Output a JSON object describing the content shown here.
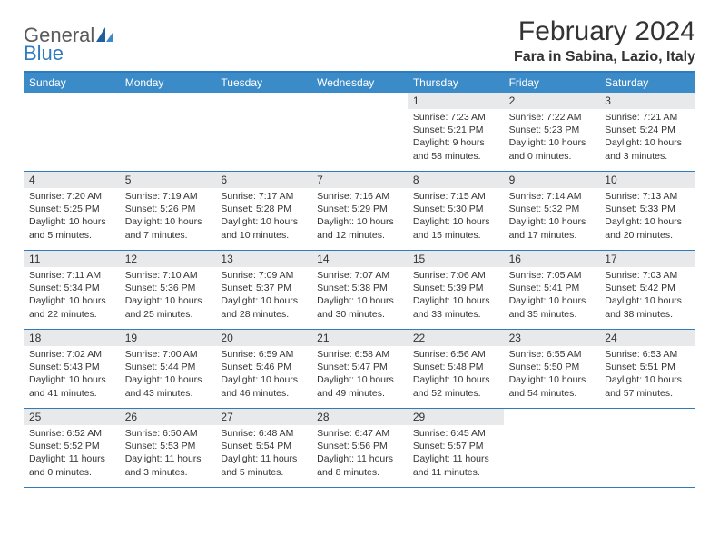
{
  "brand": {
    "general": "General",
    "blue": "Blue"
  },
  "title": "February 2024",
  "location": "Fara in Sabina, Lazio, Italy",
  "colors": {
    "header_bg": "#3c8bc9",
    "border": "#2f7bbf",
    "daynum_bg": "#e8e9ea",
    "text": "#333333",
    "logo_gray": "#5a5a5a",
    "logo_blue": "#2f7bbf"
  },
  "day_headers": [
    "Sunday",
    "Monday",
    "Tuesday",
    "Wednesday",
    "Thursday",
    "Friday",
    "Saturday"
  ],
  "weeks": [
    [
      {
        "num": "",
        "sunrise": "",
        "sunset": "",
        "daylight": ""
      },
      {
        "num": "",
        "sunrise": "",
        "sunset": "",
        "daylight": ""
      },
      {
        "num": "",
        "sunrise": "",
        "sunset": "",
        "daylight": ""
      },
      {
        "num": "",
        "sunrise": "",
        "sunset": "",
        "daylight": ""
      },
      {
        "num": "1",
        "sunrise": "Sunrise: 7:23 AM",
        "sunset": "Sunset: 5:21 PM",
        "daylight": "Daylight: 9 hours and 58 minutes."
      },
      {
        "num": "2",
        "sunrise": "Sunrise: 7:22 AM",
        "sunset": "Sunset: 5:23 PM",
        "daylight": "Daylight: 10 hours and 0 minutes."
      },
      {
        "num": "3",
        "sunrise": "Sunrise: 7:21 AM",
        "sunset": "Sunset: 5:24 PM",
        "daylight": "Daylight: 10 hours and 3 minutes."
      }
    ],
    [
      {
        "num": "4",
        "sunrise": "Sunrise: 7:20 AM",
        "sunset": "Sunset: 5:25 PM",
        "daylight": "Daylight: 10 hours and 5 minutes."
      },
      {
        "num": "5",
        "sunrise": "Sunrise: 7:19 AM",
        "sunset": "Sunset: 5:26 PM",
        "daylight": "Daylight: 10 hours and 7 minutes."
      },
      {
        "num": "6",
        "sunrise": "Sunrise: 7:17 AM",
        "sunset": "Sunset: 5:28 PM",
        "daylight": "Daylight: 10 hours and 10 minutes."
      },
      {
        "num": "7",
        "sunrise": "Sunrise: 7:16 AM",
        "sunset": "Sunset: 5:29 PM",
        "daylight": "Daylight: 10 hours and 12 minutes."
      },
      {
        "num": "8",
        "sunrise": "Sunrise: 7:15 AM",
        "sunset": "Sunset: 5:30 PM",
        "daylight": "Daylight: 10 hours and 15 minutes."
      },
      {
        "num": "9",
        "sunrise": "Sunrise: 7:14 AM",
        "sunset": "Sunset: 5:32 PM",
        "daylight": "Daylight: 10 hours and 17 minutes."
      },
      {
        "num": "10",
        "sunrise": "Sunrise: 7:13 AM",
        "sunset": "Sunset: 5:33 PM",
        "daylight": "Daylight: 10 hours and 20 minutes."
      }
    ],
    [
      {
        "num": "11",
        "sunrise": "Sunrise: 7:11 AM",
        "sunset": "Sunset: 5:34 PM",
        "daylight": "Daylight: 10 hours and 22 minutes."
      },
      {
        "num": "12",
        "sunrise": "Sunrise: 7:10 AM",
        "sunset": "Sunset: 5:36 PM",
        "daylight": "Daylight: 10 hours and 25 minutes."
      },
      {
        "num": "13",
        "sunrise": "Sunrise: 7:09 AM",
        "sunset": "Sunset: 5:37 PM",
        "daylight": "Daylight: 10 hours and 28 minutes."
      },
      {
        "num": "14",
        "sunrise": "Sunrise: 7:07 AM",
        "sunset": "Sunset: 5:38 PM",
        "daylight": "Daylight: 10 hours and 30 minutes."
      },
      {
        "num": "15",
        "sunrise": "Sunrise: 7:06 AM",
        "sunset": "Sunset: 5:39 PM",
        "daylight": "Daylight: 10 hours and 33 minutes."
      },
      {
        "num": "16",
        "sunrise": "Sunrise: 7:05 AM",
        "sunset": "Sunset: 5:41 PM",
        "daylight": "Daylight: 10 hours and 35 minutes."
      },
      {
        "num": "17",
        "sunrise": "Sunrise: 7:03 AM",
        "sunset": "Sunset: 5:42 PM",
        "daylight": "Daylight: 10 hours and 38 minutes."
      }
    ],
    [
      {
        "num": "18",
        "sunrise": "Sunrise: 7:02 AM",
        "sunset": "Sunset: 5:43 PM",
        "daylight": "Daylight: 10 hours and 41 minutes."
      },
      {
        "num": "19",
        "sunrise": "Sunrise: 7:00 AM",
        "sunset": "Sunset: 5:44 PM",
        "daylight": "Daylight: 10 hours and 43 minutes."
      },
      {
        "num": "20",
        "sunrise": "Sunrise: 6:59 AM",
        "sunset": "Sunset: 5:46 PM",
        "daylight": "Daylight: 10 hours and 46 minutes."
      },
      {
        "num": "21",
        "sunrise": "Sunrise: 6:58 AM",
        "sunset": "Sunset: 5:47 PM",
        "daylight": "Daylight: 10 hours and 49 minutes."
      },
      {
        "num": "22",
        "sunrise": "Sunrise: 6:56 AM",
        "sunset": "Sunset: 5:48 PM",
        "daylight": "Daylight: 10 hours and 52 minutes."
      },
      {
        "num": "23",
        "sunrise": "Sunrise: 6:55 AM",
        "sunset": "Sunset: 5:50 PM",
        "daylight": "Daylight: 10 hours and 54 minutes."
      },
      {
        "num": "24",
        "sunrise": "Sunrise: 6:53 AM",
        "sunset": "Sunset: 5:51 PM",
        "daylight": "Daylight: 10 hours and 57 minutes."
      }
    ],
    [
      {
        "num": "25",
        "sunrise": "Sunrise: 6:52 AM",
        "sunset": "Sunset: 5:52 PM",
        "daylight": "Daylight: 11 hours and 0 minutes."
      },
      {
        "num": "26",
        "sunrise": "Sunrise: 6:50 AM",
        "sunset": "Sunset: 5:53 PM",
        "daylight": "Daylight: 11 hours and 3 minutes."
      },
      {
        "num": "27",
        "sunrise": "Sunrise: 6:48 AM",
        "sunset": "Sunset: 5:54 PM",
        "daylight": "Daylight: 11 hours and 5 minutes."
      },
      {
        "num": "28",
        "sunrise": "Sunrise: 6:47 AM",
        "sunset": "Sunset: 5:56 PM",
        "daylight": "Daylight: 11 hours and 8 minutes."
      },
      {
        "num": "29",
        "sunrise": "Sunrise: 6:45 AM",
        "sunset": "Sunset: 5:57 PM",
        "daylight": "Daylight: 11 hours and 11 minutes."
      },
      {
        "num": "",
        "sunrise": "",
        "sunset": "",
        "daylight": ""
      },
      {
        "num": "",
        "sunrise": "",
        "sunset": "",
        "daylight": ""
      }
    ]
  ]
}
